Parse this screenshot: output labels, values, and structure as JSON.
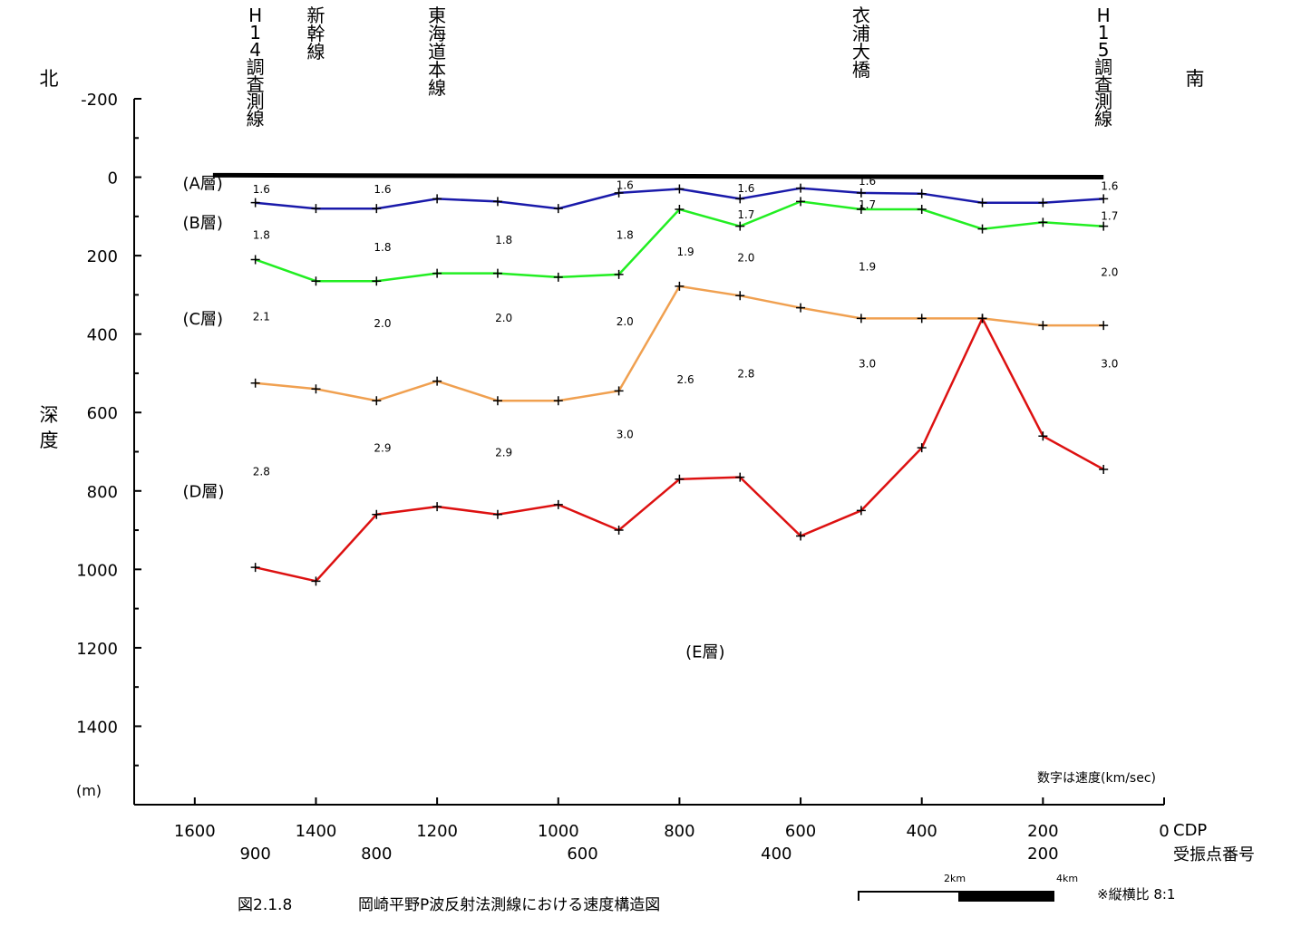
{
  "chart_data": {
    "type": "line",
    "title": "岡崎平野P波反射法測線における速度構造図",
    "figure_number": "図2.1.8",
    "direction_left": "北",
    "direction_right": "南",
    "ylabel": "深度",
    "yunit": "(m)",
    "ylim": [
      -200,
      1600
    ],
    "y_ticks": [
      -200,
      0,
      200,
      400,
      600,
      800,
      1000,
      1200,
      1400
    ],
    "y_tick_labels": [
      "-200",
      "0",
      "200",
      "400",
      "600",
      "800",
      "1000",
      "1200",
      "1400"
    ],
    "x_reversed": true,
    "xlim": [
      0,
      1700
    ],
    "xlabel_cdp": "CDP",
    "xlabel_shot": "受振点番号",
    "cdp_ticks": [
      1600,
      1400,
      1200,
      1000,
      800,
      600,
      400,
      200,
      0
    ],
    "cdp_tick_labels": [
      "1600",
      "1400",
      "1200",
      "1000",
      "800",
      "600",
      "400",
      "200",
      "0"
    ],
    "shot_ticks": [
      1500,
      1300,
      960,
      640,
      200
    ],
    "shot_tick_labels": [
      "900",
      "800",
      "600",
      "400",
      "200"
    ],
    "surface": {
      "x": [
        1570,
        100
      ],
      "y": [
        -5,
        0
      ]
    },
    "landmarks": [
      {
        "x": 1500,
        "label": "H14調査測線"
      },
      {
        "x": 1400,
        "label": "新幹線"
      },
      {
        "x": 1200,
        "label": "東海道本線"
      },
      {
        "x": 500,
        "label": "衣浦大橋"
      },
      {
        "x": 100,
        "label": "H15調査測線"
      }
    ],
    "series": [
      {
        "color": "#1a1aaa",
        "x": [
          1500,
          1400,
          1300,
          1200,
          1100,
          1000,
          900,
          800,
          700,
          600,
          500,
          400,
          300,
          200,
          100
        ],
        "y": [
          65,
          80,
          80,
          55,
          62,
          80,
          40,
          30,
          55,
          28,
          40,
          42,
          65,
          65,
          55
        ]
      },
      {
        "color": "#22ee22",
        "x": [
          1500,
          1400,
          1300,
          1200,
          1100,
          1000,
          900,
          800,
          700,
          600,
          500,
          400,
          300,
          200,
          100
        ],
        "y": [
          210,
          265,
          265,
          245,
          245,
          255,
          248,
          82,
          125,
          62,
          82,
          82,
          132,
          115,
          125
        ]
      },
      {
        "color": "#f0a050",
        "x": [
          1500,
          1400,
          1300,
          1200,
          1100,
          1000,
          900,
          800,
          700,
          600,
          500,
          400,
          300,
          200,
          100
        ],
        "y": [
          525,
          540,
          570,
          520,
          570,
          570,
          545,
          278,
          302,
          333,
          360,
          360,
          360,
          378,
          378
        ]
      },
      {
        "color": "#dd1111",
        "x": [
          1500,
          1400,
          1300,
          1200,
          1100,
          1000,
          900,
          800,
          700,
          600,
          500,
          400,
          300,
          200,
          100
        ],
        "y": [
          995,
          1030,
          860,
          840,
          860,
          835,
          900,
          770,
          765,
          915,
          850,
          690,
          360,
          660,
          745
        ]
      }
    ],
    "layer_labels": [
      {
        "label": "(A層)",
        "x": 1620,
        "y": 30
      },
      {
        "label": "(B層)",
        "x": 1620,
        "y": 130
      },
      {
        "label": "(C層)",
        "x": 1620,
        "y": 375
      },
      {
        "label": "(D層)",
        "x": 1620,
        "y": 815
      },
      {
        "label": "(E層)",
        "x": 790,
        "y": 1225
      }
    ],
    "velocity_labels": [
      {
        "x": 1490,
        "y": 40,
        "v": "1.6"
      },
      {
        "x": 1290,
        "y": 40,
        "v": "1.6"
      },
      {
        "x": 890,
        "y": 30,
        "v": "1.6"
      },
      {
        "x": 690,
        "y": 38,
        "v": "1.6"
      },
      {
        "x": 490,
        "y": 20,
        "v": "1.6"
      },
      {
        "x": 90,
        "y": 32,
        "v": "1.6"
      },
      {
        "x": 690,
        "y": 105,
        "v": "1.7"
      },
      {
        "x": 490,
        "y": 80,
        "v": "1.7"
      },
      {
        "x": 90,
        "y": 108,
        "v": "1.7"
      },
      {
        "x": 1490,
        "y": 157,
        "v": "1.8"
      },
      {
        "x": 1290,
        "y": 188,
        "v": "1.8"
      },
      {
        "x": 1090,
        "y": 170,
        "v": "1.8"
      },
      {
        "x": 890,
        "y": 157,
        "v": "1.8"
      },
      {
        "x": 790,
        "y": 200,
        "v": "1.9"
      },
      {
        "x": 490,
        "y": 238,
        "v": "1.9"
      },
      {
        "x": 690,
        "y": 215,
        "v": "2.0"
      },
      {
        "x": 90,
        "y": 252,
        "v": "2.0"
      },
      {
        "x": 1490,
        "y": 365,
        "v": "2.1"
      },
      {
        "x": 1290,
        "y": 382,
        "v": "2.0"
      },
      {
        "x": 1090,
        "y": 368,
        "v": "2.0"
      },
      {
        "x": 890,
        "y": 378,
        "v": "2.0"
      },
      {
        "x": 790,
        "y": 525,
        "v": "2.6"
      },
      {
        "x": 690,
        "y": 510,
        "v": "2.8"
      },
      {
        "x": 490,
        "y": 485,
        "v": "3.0"
      },
      {
        "x": 90,
        "y": 485,
        "v": "3.0"
      },
      {
        "x": 890,
        "y": 665,
        "v": "3.0"
      },
      {
        "x": 1290,
        "y": 700,
        "v": "2.9"
      },
      {
        "x": 1090,
        "y": 712,
        "v": "2.9"
      },
      {
        "x": 1490,
        "y": 760,
        "v": "2.8"
      }
    ],
    "note": "数字は速度(km/sec)",
    "aspect_note": "※縦横比 8:1",
    "scale_bar": {
      "labels": [
        "2km",
        "4km"
      ]
    }
  }
}
